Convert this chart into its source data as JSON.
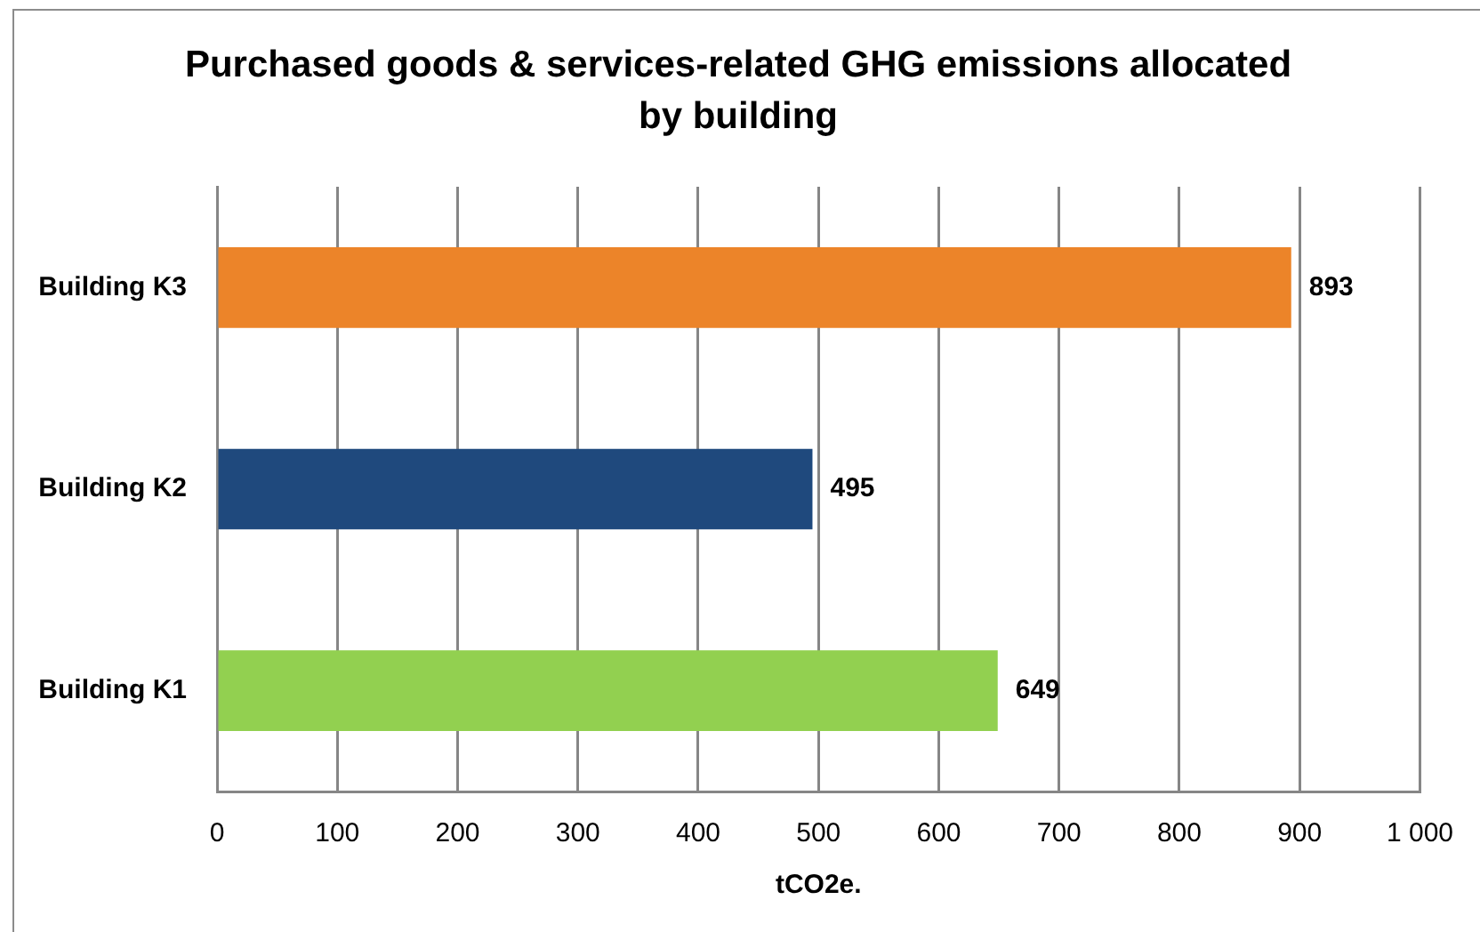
{
  "chart_data": {
    "type": "bar",
    "orientation": "horizontal",
    "title": "Purchased goods & services-related GHG emissions allocated by building",
    "xlabel": "tCO2e.",
    "categories": [
      "Building K3",
      "Building K2",
      "Building K1"
    ],
    "values": [
      893,
      495,
      649
    ],
    "colors": [
      "#ec8429",
      "#1f497d",
      "#92d050"
    ],
    "xlim": [
      0,
      1000
    ],
    "xticks": [
      0,
      100,
      200,
      300,
      400,
      500,
      600,
      700,
      800,
      900,
      {
        "value": 1000,
        "label": "1 000"
      }
    ],
    "grid": "x",
    "data_labels": true
  }
}
